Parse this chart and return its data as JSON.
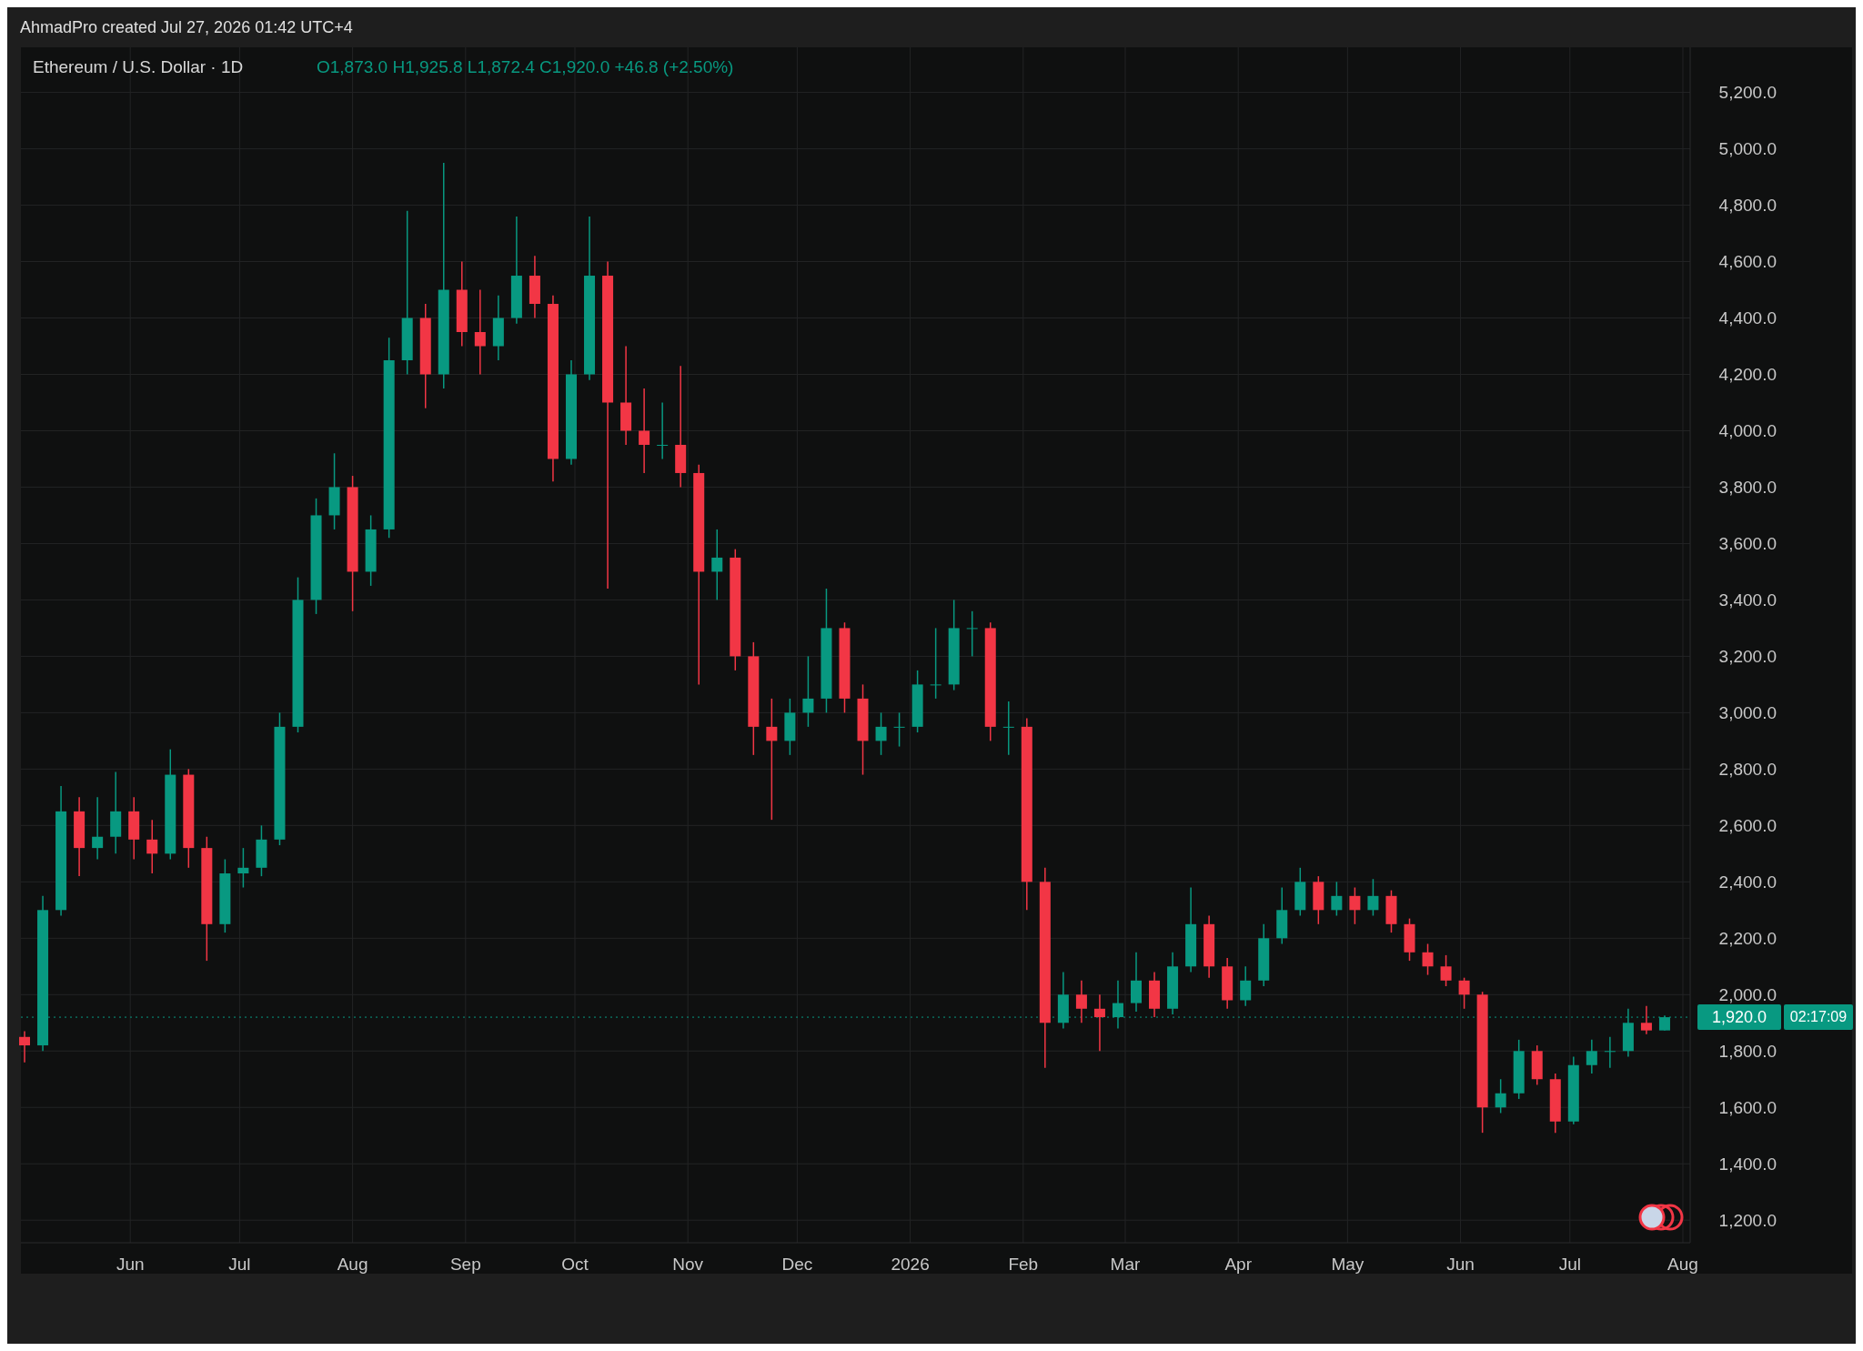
{
  "chart_data": {
    "type": "candlestick",
    "title": "Ethereum / U.S. Dollar · 1D",
    "subtitle": "O1,873.0 H1,925.8 L1,872.4 C1,920.0 +46.8 (+2.50%)",
    "annotations": [
      "AhmadPro created Jul 27, 2026 01:42 UTC+4",
      "02:17:09"
    ],
    "x": [
      "2025-05-03",
      "2025-05-08",
      "2025-05-13",
      "2025-05-18",
      "2025-05-23",
      "2025-05-28",
      "2025-06-02",
      "2025-06-07",
      "2025-06-12",
      "2025-06-17",
      "2025-06-22",
      "2025-06-27",
      "2025-07-02",
      "2025-07-07",
      "2025-07-12",
      "2025-07-17",
      "2025-07-22",
      "2025-07-27",
      "2025-08-01",
      "2025-08-06",
      "2025-08-11",
      "2025-08-16",
      "2025-08-21",
      "2025-08-26",
      "2025-08-31",
      "2025-09-05",
      "2025-09-10",
      "2025-09-15",
      "2025-09-20",
      "2025-09-25",
      "2025-09-30",
      "2025-10-05",
      "2025-10-10",
      "2025-10-15",
      "2025-10-20",
      "2025-10-25",
      "2025-10-30",
      "2025-11-04",
      "2025-11-09",
      "2025-11-14",
      "2025-11-19",
      "2025-11-24",
      "2025-11-29",
      "2025-12-04",
      "2025-12-09",
      "2025-12-14",
      "2025-12-19",
      "2025-12-24",
      "2025-12-29",
      "2026-01-03",
      "2026-01-08",
      "2026-01-13",
      "2026-01-18",
      "2026-01-23",
      "2026-01-28",
      "2026-02-02",
      "2026-02-07",
      "2026-02-12",
      "2026-02-17",
      "2026-02-22",
      "2026-02-27",
      "2026-03-04",
      "2026-03-09",
      "2026-03-14",
      "2026-03-19",
      "2026-03-24",
      "2026-03-29",
      "2026-04-03",
      "2026-04-08",
      "2026-04-13",
      "2026-04-18",
      "2026-04-23",
      "2026-04-28",
      "2026-05-03",
      "2026-05-08",
      "2026-05-13",
      "2026-05-18",
      "2026-05-23",
      "2026-05-28",
      "2026-06-02",
      "2026-06-07",
      "2026-06-12",
      "2026-06-17",
      "2026-06-22",
      "2026-06-27",
      "2026-07-02",
      "2026-07-07",
      "2026-07-12",
      "2026-07-17",
      "2026-07-22",
      "2026-07-27"
    ],
    "ohlc": [
      [
        1850,
        1870,
        1760,
        1820
      ],
      [
        1820,
        2350,
        1800,
        2300
      ],
      [
        2300,
        2740,
        2280,
        2650
      ],
      [
        2650,
        2700,
        2420,
        2520
      ],
      [
        2520,
        2700,
        2480,
        2560
      ],
      [
        2560,
        2790,
        2500,
        2650
      ],
      [
        2650,
        2700,
        2480,
        2550
      ],
      [
        2550,
        2620,
        2430,
        2500
      ],
      [
        2500,
        2870,
        2480,
        2780
      ],
      [
        2780,
        2800,
        2450,
        2520
      ],
      [
        2520,
        2560,
        2120,
        2250
      ],
      [
        2250,
        2480,
        2220,
        2430
      ],
      [
        2430,
        2520,
        2380,
        2450
      ],
      [
        2450,
        2600,
        2420,
        2550
      ],
      [
        2550,
        3000,
        2530,
        2950
      ],
      [
        2950,
        3480,
        2930,
        3400
      ],
      [
        3400,
        3760,
        3350,
        3700
      ],
      [
        3700,
        3920,
        3650,
        3800
      ],
      [
        3800,
        3840,
        3360,
        3500
      ],
      [
        3500,
        3700,
        3450,
        3650
      ],
      [
        3650,
        4330,
        3620,
        4250
      ],
      [
        4250,
        4780,
        4200,
        4400
      ],
      [
        4400,
        4450,
        4080,
        4200
      ],
      [
        4200,
        4950,
        4150,
        4500
      ],
      [
        4500,
        4600,
        4300,
        4350
      ],
      [
        4350,
        4500,
        4200,
        4300
      ],
      [
        4300,
        4480,
        4250,
        4400
      ],
      [
        4400,
        4760,
        4380,
        4550
      ],
      [
        4550,
        4620,
        4400,
        4450
      ],
      [
        4450,
        4480,
        3820,
        3900
      ],
      [
        3900,
        4250,
        3880,
        4200
      ],
      [
        4200,
        4760,
        4180,
        4550
      ],
      [
        4550,
        4600,
        3440,
        4100
      ],
      [
        4100,
        4300,
        3950,
        4000
      ],
      [
        4000,
        4150,
        3850,
        3950
      ],
      [
        3950,
        4100,
        3900,
        3950
      ],
      [
        3950,
        4230,
        3800,
        3850
      ],
      [
        3850,
        3880,
        3100,
        3500
      ],
      [
        3500,
        3650,
        3400,
        3550
      ],
      [
        3550,
        3580,
        3150,
        3200
      ],
      [
        3200,
        3250,
        2850,
        2950
      ],
      [
        2950,
        3050,
        2620,
        2900
      ],
      [
        2900,
        3050,
        2850,
        3000
      ],
      [
        3000,
        3200,
        2950,
        3050
      ],
      [
        3050,
        3440,
        3000,
        3300
      ],
      [
        3300,
        3320,
        3000,
        3050
      ],
      [
        3050,
        3100,
        2780,
        2900
      ],
      [
        2900,
        3000,
        2850,
        2950
      ],
      [
        2950,
        3000,
        2880,
        2950
      ],
      [
        2950,
        3150,
        2930,
        3100
      ],
      [
        3100,
        3300,
        3050,
        3100
      ],
      [
        3100,
        3400,
        3080,
        3300
      ],
      [
        3300,
        3360,
        3200,
        3300
      ],
      [
        3300,
        3320,
        2900,
        2950
      ],
      [
        2950,
        3040,
        2850,
        2950
      ],
      [
        2950,
        2980,
        2300,
        2400
      ],
      [
        2400,
        2450,
        1740,
        1900
      ],
      [
        1900,
        2080,
        1880,
        2000
      ],
      [
        2000,
        2050,
        1900,
        1950
      ],
      [
        1950,
        2000,
        1800,
        1920
      ],
      [
        1920,
        2050,
        1880,
        1970
      ],
      [
        1970,
        2150,
        1940,
        2050
      ],
      [
        2050,
        2080,
        1920,
        1950
      ],
      [
        1950,
        2150,
        1930,
        2100
      ],
      [
        2100,
        2380,
        2080,
        2250
      ],
      [
        2250,
        2280,
        2060,
        2100
      ],
      [
        2100,
        2130,
        1950,
        1980
      ],
      [
        1980,
        2100,
        1960,
        2050
      ],
      [
        2050,
        2250,
        2030,
        2200
      ],
      [
        2200,
        2380,
        2180,
        2300
      ],
      [
        2300,
        2450,
        2280,
        2400
      ],
      [
        2400,
        2420,
        2250,
        2300
      ],
      [
        2300,
        2400,
        2280,
        2350
      ],
      [
        2350,
        2380,
        2250,
        2300
      ],
      [
        2300,
        2410,
        2280,
        2350
      ],
      [
        2350,
        2370,
        2220,
        2250
      ],
      [
        2250,
        2270,
        2120,
        2150
      ],
      [
        2150,
        2180,
        2070,
        2100
      ],
      [
        2100,
        2140,
        2030,
        2050
      ],
      [
        2050,
        2060,
        1950,
        2000
      ],
      [
        2000,
        2010,
        1510,
        1600
      ],
      [
        1600,
        1700,
        1580,
        1650
      ],
      [
        1650,
        1840,
        1630,
        1800
      ],
      [
        1800,
        1820,
        1680,
        1700
      ],
      [
        1700,
        1720,
        1510,
        1550
      ],
      [
        1550,
        1780,
        1540,
        1750
      ],
      [
        1750,
        1840,
        1720,
        1800
      ],
      [
        1800,
        1850,
        1740,
        1800
      ],
      [
        1800,
        1950,
        1780,
        1900
      ],
      [
        1900,
        1960,
        1860,
        1873
      ],
      [
        1873,
        1925.8,
        1872.4,
        1920
      ]
    ],
    "xlim": [
      "2025-05-02",
      "2026-08-03"
    ],
    "xticks": [
      {
        "value": "2025-06-01",
        "label": "Jun"
      },
      {
        "value": "2025-07-01",
        "label": "Jul"
      },
      {
        "value": "2025-08-01",
        "label": "Aug"
      },
      {
        "value": "2025-09-01",
        "label": "Sep"
      },
      {
        "value": "2025-10-01",
        "label": "Oct"
      },
      {
        "value": "2025-11-01",
        "label": "Nov"
      },
      {
        "value": "2025-12-01",
        "label": "Dec"
      },
      {
        "value": "2026-01-01",
        "label": "2026"
      },
      {
        "value": "2026-02-01",
        "label": "Feb"
      },
      {
        "value": "2026-03-01",
        "label": "Mar"
      },
      {
        "value": "2026-04-01",
        "label": "Apr"
      },
      {
        "value": "2026-05-01",
        "label": "May"
      },
      {
        "value": "2026-06-01",
        "label": "Jun"
      },
      {
        "value": "2026-07-01",
        "label": "Jul"
      },
      {
        "value": "2026-08-01",
        "label": "Aug"
      }
    ],
    "ylim": [
      1120,
      5360
    ],
    "yticks": [
      {
        "value": 1200,
        "label": "1,200.0"
      },
      {
        "value": 1400,
        "label": "1,400.0"
      },
      {
        "value": 1600,
        "label": "1,600.0"
      },
      {
        "value": 1800,
        "label": "1,800.0"
      },
      {
        "value": 2000,
        "label": "2,000.0"
      },
      {
        "value": 2200,
        "label": "2,200.0"
      },
      {
        "value": 2400,
        "label": "2,400.0"
      },
      {
        "value": 2600,
        "label": "2,600.0"
      },
      {
        "value": 2800,
        "label": "2,800.0"
      },
      {
        "value": 3000,
        "label": "3,000.0"
      },
      {
        "value": 3200,
        "label": "3,200.0"
      },
      {
        "value": 3400,
        "label": "3,400.0"
      },
      {
        "value": 3600,
        "label": "3,600.0"
      },
      {
        "value": 3800,
        "label": "3,800.0"
      },
      {
        "value": 4000,
        "label": "4,000.0"
      },
      {
        "value": 4200,
        "label": "4,200.0"
      },
      {
        "value": 4400,
        "label": "4,400.0"
      },
      {
        "value": 4600,
        "label": "4,600.0"
      },
      {
        "value": 4800,
        "label": "4,800.0"
      },
      {
        "value": 5000,
        "label": "5,000.0"
      },
      {
        "value": 5200,
        "label": "5,200.0"
      }
    ],
    "grid": true,
    "ref_lines": [
      {
        "axis": "y",
        "value": 1920,
        "label": "1,920.0",
        "color": "#089981",
        "line_style": "dotted"
      }
    ]
  }
}
